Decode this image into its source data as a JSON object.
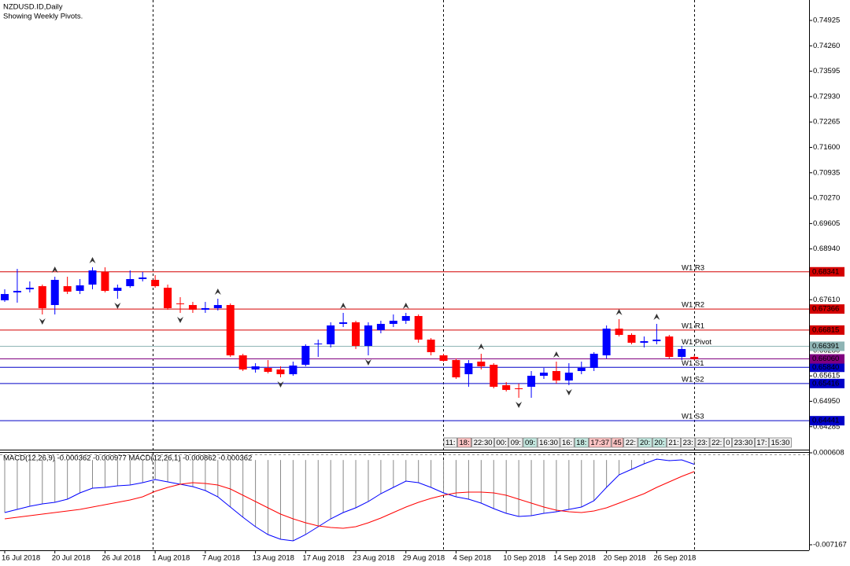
{
  "chart_data": [
    {
      "type": "candlestick",
      "title": "NZDUSD.ID,Daily",
      "subtitle": "Showing Weekly Pivots.",
      "categories": [
        "16 Jul 2018",
        null,
        null,
        null,
        "20 Jul 2018",
        null,
        null,
        null,
        "26 Jul 2018",
        null,
        null,
        null,
        "1 Aug 2018",
        null,
        null,
        null,
        "7 Aug 2018",
        null,
        null,
        null,
        "13 Aug 2018",
        null,
        null,
        null,
        "17 Aug 2018",
        null,
        null,
        null,
        "23 Aug 2018",
        null,
        null,
        null,
        "29 Aug 2018",
        null,
        null,
        null,
        "4 Sep 2018",
        null,
        null,
        null,
        "10 Sep 2018",
        null,
        null,
        null,
        "14 Sep 2018",
        null,
        null,
        null,
        "20 Sep 2018",
        null,
        null,
        null,
        "26 Sep 2018",
        null,
        null,
        null
      ],
      "open": [
        0.67595,
        0.67801,
        0.67883,
        0.67965,
        0.67471,
        0.67965,
        0.67842,
        0.68006,
        0.68336,
        0.67842,
        0.67965,
        0.68151,
        0.6813,
        0.67924,
        0.67512,
        0.67471,
        0.67348,
        0.67389,
        0.67471,
        0.66153,
        0.65783,
        0.65824,
        0.65783,
        0.65659,
        0.65906,
        0.66442,
        0.66442,
        0.66977,
        0.67018,
        0.664,
        0.66812,
        0.66977,
        0.67059,
        0.67183,
        0.66565,
        0.66153,
        0.6603,
        0.65659,
        0.65989,
        0.65906,
        0.65371,
        0.65289,
        0.6533,
        0.65618,
        0.65742,
        0.65494,
        0.65742,
        0.65824,
        0.66153,
        0.66853,
        0.66689,
        0.66483,
        0.66524,
        0.66647,
        0.66112,
        0.66112
      ],
      "high": [
        0.67883,
        0.68418,
        0.68089,
        0.68006,
        0.68212,
        0.68212,
        0.68151,
        0.68459,
        0.68459,
        0.68006,
        0.68377,
        0.68336,
        0.68253,
        0.68006,
        0.67677,
        0.67553,
        0.67553,
        0.67636,
        0.67512,
        0.66194,
        0.65947,
        0.6603,
        0.65865,
        0.65989,
        0.66442,
        0.66565,
        0.67018,
        0.67265,
        0.67059,
        0.67018,
        0.67059,
        0.67224,
        0.67265,
        0.67224,
        0.66606,
        0.66194,
        0.66071,
        0.6603,
        0.66194,
        0.65947,
        0.65453,
        0.65412,
        0.65742,
        0.65824,
        0.65989,
        0.65947,
        0.65989,
        0.66236,
        0.66936,
        0.671,
        0.6673,
        0.66647,
        0.66977,
        0.66689,
        0.664,
        0.66153
      ],
      "low": [
        0.67553,
        0.67533,
        0.67801,
        0.67224,
        0.67224,
        0.67759,
        0.67759,
        0.67883,
        0.67801,
        0.67636,
        0.67924,
        0.68089,
        0.67924,
        0.67348,
        0.67265,
        0.67265,
        0.67265,
        0.67327,
        0.66112,
        0.65742,
        0.657,
        0.6568,
        0.65577,
        0.65618,
        0.65865,
        0.66112,
        0.66359,
        0.66895,
        0.66318,
        0.66153,
        0.6673,
        0.66895,
        0.66977,
        0.66483,
        0.66153,
        0.65989,
        0.65536,
        0.6533,
        0.65783,
        0.65289,
        0.65206,
        0.65041,
        0.65041,
        0.65536,
        0.65412,
        0.65371,
        0.65659,
        0.65742,
        0.66071,
        0.66647,
        0.66442,
        0.66359,
        0.66442,
        0.66071,
        0.6603,
        0.6603
      ],
      "close": [
        0.67759,
        0.67842,
        0.67924,
        0.67389,
        0.6813,
        0.67821,
        0.67986,
        0.68377,
        0.67842,
        0.67924,
        0.68151,
        0.68192,
        0.67965,
        0.67389,
        0.67492,
        0.67348,
        0.67389,
        0.67471,
        0.66153,
        0.65783,
        0.65865,
        0.65721,
        0.65659,
        0.65886,
        0.664,
        0.66462,
        0.66936,
        0.67018,
        0.664,
        0.66936,
        0.66977,
        0.67059,
        0.67183,
        0.66565,
        0.66236,
        0.66009,
        0.65577,
        0.65947,
        0.65865,
        0.6533,
        0.65247,
        0.65268,
        0.65618,
        0.657,
        0.65494,
        0.657,
        0.65824,
        0.66194,
        0.66853,
        0.66689,
        0.66483,
        0.66524,
        0.66565,
        0.66112,
        0.66318,
        0.6606
      ],
      "up_color": "#0000ff",
      "down_color": "#ff0000",
      "fractals": true,
      "ylim": [
        0.63683,
        0.7546
      ],
      "yticks": [
        {
          "value": 0.74925,
          "label": "0.74925"
        },
        {
          "value": 0.7426,
          "label": "0.74260"
        },
        {
          "value": 0.73595,
          "label": "0.73595"
        },
        {
          "value": 0.7293,
          "label": "0.72930"
        },
        {
          "value": 0.72265,
          "label": "0.72265"
        },
        {
          "value": 0.716,
          "label": "0.71600"
        },
        {
          "value": 0.70935,
          "label": "0.70935"
        },
        {
          "value": 0.7027,
          "label": "0.70270"
        },
        {
          "value": 0.69605,
          "label": "0.69605"
        },
        {
          "value": 0.6894,
          "label": "0.68940"
        },
        {
          "value": 0.6761,
          "label": "0.67610"
        },
        {
          "value": 0.6628,
          "label": "0.66280"
        },
        {
          "value": 0.65615,
          "label": "0.65615"
        },
        {
          "value": 0.6495,
          "label": "0.64950"
        },
        {
          "value": 0.64285,
          "label": "0.64285"
        }
      ],
      "levels": {
        "names": [
          "W1 R3",
          "W1 R2",
          "W1 R1",
          "W1 Pivot",
          "W1 S1",
          "W1 S2",
          "W1 S3"
        ],
        "values": [
          0.68341,
          0.67366,
          0.66815,
          0.66391,
          0.6584,
          0.65416,
          0.64441
        ],
        "value_labels": [
          "0.68341",
          "0.67366",
          "0.66815",
          "0.66391",
          "0.65840",
          "0.65416",
          "0.64441"
        ],
        "colors": [
          "#d40000",
          "#d40000",
          "#d40000",
          "#8fb5b5",
          "#0000c8",
          "#0000c8",
          "#0000c8"
        ]
      },
      "price_line": {
        "value": 0.6606,
        "value_label": "0.66060",
        "color": "#800080"
      },
      "sessions": [
        {
          "text": "11:",
          "color": "#f0f0f0"
        },
        {
          "text": "18:",
          "color": "#ffc4c4"
        },
        {
          "text": "22:30",
          "color": "#f0f0f0"
        },
        {
          "text": "00:",
          "color": "#f0f0f0"
        },
        {
          "text": "09:",
          "color": "#f0f0f0"
        },
        {
          "text": "09:",
          "color": "#c4e8e0"
        },
        {
          "text": "16:30",
          "color": "#f0f0f0"
        },
        {
          "text": "16:",
          "color": "#f0f0f0"
        },
        {
          "text": "18:",
          "color": "#c4e8e0"
        },
        {
          "text": "17:37",
          "color": "#ffc4c4"
        },
        {
          "text": "45",
          "color": "#ffc4c4"
        },
        {
          "text": "22:",
          "color": "#f0f0f0"
        },
        {
          "text": "20:",
          "color": "#c4e8e0"
        },
        {
          "text": "20:",
          "color": "#c4e8e0"
        },
        {
          "text": "21:",
          "color": "#f0f0f0"
        },
        {
          "text": "23:",
          "color": "#f0f0f0"
        },
        {
          "text": "23:",
          "color": "#f0f0f0"
        },
        {
          "text": "22:",
          "color": "#f0f0f0"
        },
        {
          "text": "0",
          "color": "#ffffff"
        },
        {
          "text": "23:30",
          "color": "#f0f0f0"
        },
        {
          "text": "17:",
          "color": "#f0f0f0"
        },
        {
          "text": "15:30",
          "color": "#f0f0f0"
        }
      ]
    },
    {
      "type": "macd",
      "title": "MACD(12,26,9) -0.000362 -0.000977 MACD(12,26,1) -0.000862 -0.000362",
      "series": [
        {
          "color": "#0000ff",
          "histogram": true,
          "values": [
            -0.004442,
            -0.004176,
            -0.003911,
            -0.003711,
            -0.003578,
            -0.003313,
            -0.002781,
            -0.002382,
            -0.002316,
            -0.002183,
            -0.002116,
            -0.001917,
            -0.001651,
            -0.001851,
            -0.00205,
            -0.002249,
            -0.002582,
            -0.003113,
            -0.003977,
            -0.004841,
            -0.005638,
            -0.006303,
            -0.006702,
            -0.006834,
            -0.006303,
            -0.005638,
            -0.004974,
            -0.004442,
            -0.004044,
            -0.003512,
            -0.002847,
            -0.002316,
            -0.001784,
            -0.001917,
            -0.002316,
            -0.002781,
            -0.003113,
            -0.003313,
            -0.003645,
            -0.00411,
            -0.004509,
            -0.004774,
            -0.004708,
            -0.004509,
            -0.004376,
            -0.004176,
            -0.003977,
            -0.003445,
            -0.002316,
            -0.001253,
            -0.000787,
            -0.000322,
            7.6e-05,
            -5.7e-05,
            1e-05,
            -0.000362
          ]
        },
        {
          "color": "#ff0000",
          "histogram": false,
          "values": [
            -0.004974,
            -0.004841,
            -0.004708,
            -0.004575,
            -0.004442,
            -0.004309,
            -0.004176,
            -0.003977,
            -0.003778,
            -0.003578,
            -0.003379,
            -0.003113,
            -0.002648,
            -0.002316,
            -0.00205,
            -0.001917,
            -0.001984,
            -0.002116,
            -0.002449,
            -0.00298,
            -0.003512,
            -0.004044,
            -0.004575,
            -0.004974,
            -0.005306,
            -0.005572,
            -0.005705,
            -0.005771,
            -0.005638,
            -0.005306,
            -0.004907,
            -0.004442,
            -0.003977,
            -0.003578,
            -0.003246,
            -0.00298,
            -0.002781,
            -0.002715,
            -0.002715,
            -0.002781,
            -0.00298,
            -0.003313,
            -0.003645,
            -0.003977,
            -0.004243,
            -0.004376,
            -0.004442,
            -0.004309,
            -0.004044,
            -0.003645,
            -0.003246,
            -0.002847,
            -0.002316,
            -0.001851,
            -0.001386,
            -0.000977
          ]
        }
      ],
      "ylim": [
        -0.007167,
        0.000608
      ],
      "yticks": [
        0.000608,
        -0.007167
      ]
    }
  ]
}
